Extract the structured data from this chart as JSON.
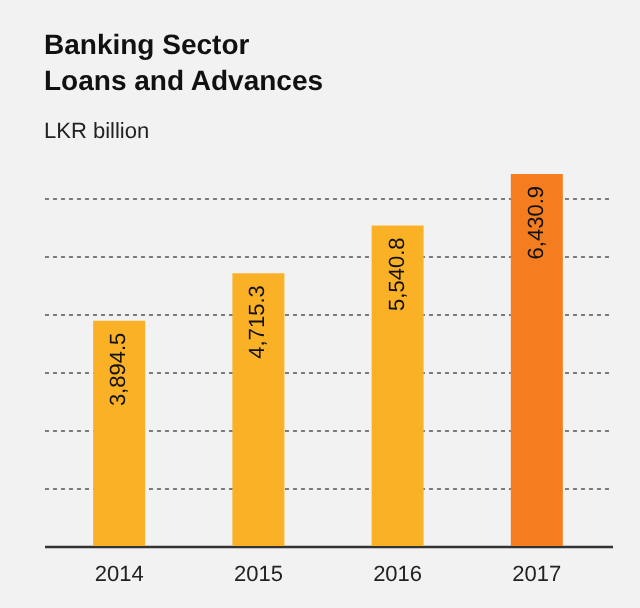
{
  "chart_data": {
    "type": "bar",
    "title": "Banking Sector\nLoans and Advances",
    "subtitle": "LKR billion",
    "categories": [
      "2014",
      "2015",
      "2016",
      "2017"
    ],
    "values": [
      3894.5,
      4715.3,
      5540.8,
      6430.9
    ],
    "colors": [
      "#fbb126",
      "#fbb126",
      "#fbb126",
      "#f47d20"
    ],
    "value_labels": [
      "3,894.5",
      "4,715.3",
      "5,540.8",
      "6,430.9"
    ],
    "grid": "y",
    "tick_labels": "x"
  }
}
